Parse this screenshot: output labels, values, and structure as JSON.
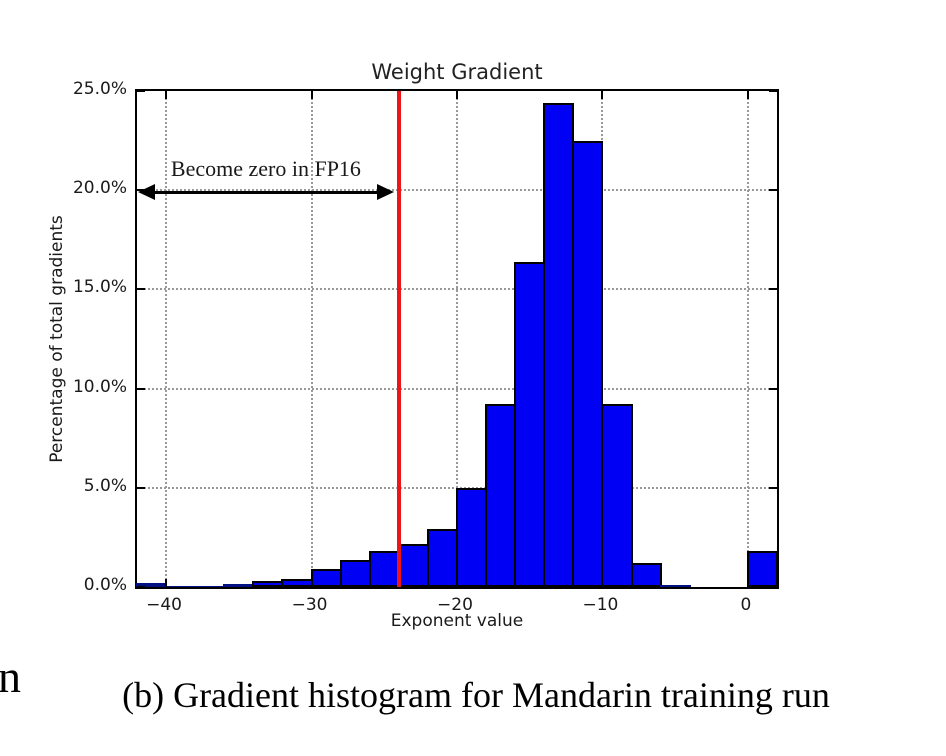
{
  "page": {
    "caption": "(b) Gradient histogram for Mandarin training run",
    "stray_text": "n",
    "background_color": "#ffffff"
  },
  "chart_data": {
    "type": "bar",
    "title": "Weight Gradient",
    "xlabel": "Exponent value",
    "ylabel": "Percentage of total gradients",
    "xlim": [
      -42,
      2
    ],
    "ylim": [
      0,
      25
    ],
    "grid": true,
    "bin_width": 2,
    "bins_left_edge": [
      -42,
      -40,
      -38,
      -36,
      -34,
      -32,
      -30,
      -28,
      -26,
      -24,
      -22,
      -20,
      -18,
      -16,
      -14,
      -12,
      -10,
      -8,
      -6,
      -4,
      -2,
      0
    ],
    "values_percent": [
      0.2,
      0.03,
      0.03,
      0.13,
      0.28,
      0.4,
      0.9,
      1.35,
      1.8,
      2.15,
      2.9,
      5.0,
      9.2,
      16.4,
      24.4,
      22.5,
      9.2,
      1.2,
      0.1,
      0,
      0,
      1.8
    ],
    "x_ticks": [
      -40,
      -30,
      -20,
      -10,
      0
    ],
    "x_tick_labels": [
      "−40",
      "−30",
      "−20",
      "−10",
      "0"
    ],
    "y_ticks": [
      0,
      5,
      10,
      15,
      20,
      25
    ],
    "y_tick_labels": [
      "0.0%",
      "5.0%",
      "10.0%",
      "15.0%",
      "20.0%",
      "25.0%"
    ],
    "bar_color": "#0000f5",
    "bar_edge_color": "#000000",
    "tiny_bar_color": "#001080",
    "grid_color": "#999999",
    "vline": {
      "x": -24,
      "color": "#ed1515"
    },
    "annotation": {
      "text": "Become zero in FP16",
      "arrow_from_x": -42,
      "arrow_to_x": -24,
      "arrow_y_percent": 19.9,
      "arrow_color": "#000000"
    }
  }
}
